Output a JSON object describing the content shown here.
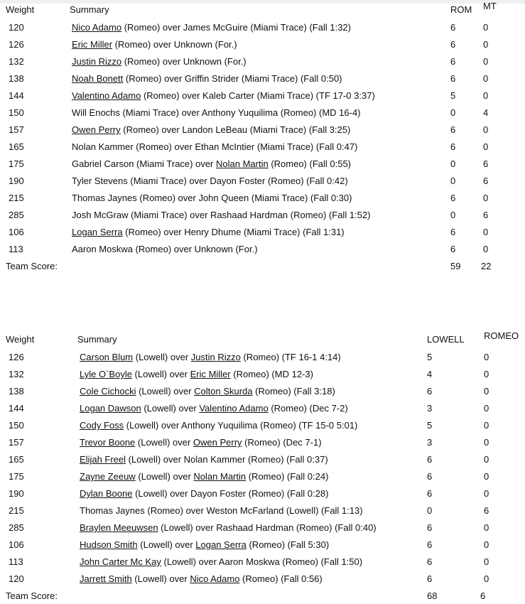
{
  "tables": [
    {
      "headers": {
        "weight": "Weight",
        "summary": "Summary",
        "team1": "ROM",
        "team2": "MT"
      },
      "rows": [
        {
          "weight": "120",
          "summary": [
            {
              "text": "Nico Adamo",
              "link": true
            },
            {
              "text": " (Romeo) over James McGuire (Miami Trace) (Fall 1:32)",
              "link": false
            }
          ],
          "team1": "6",
          "team2": "0"
        },
        {
          "weight": "126",
          "summary": [
            {
              "text": "Eric Miller",
              "link": true
            },
            {
              "text": " (Romeo) over Unknown (For.)",
              "link": false
            }
          ],
          "team1": "6",
          "team2": "0"
        },
        {
          "weight": "132",
          "summary": [
            {
              "text": "Justin Rizzo",
              "link": true
            },
            {
              "text": " (Romeo) over Unknown (For.)",
              "link": false
            }
          ],
          "team1": "6",
          "team2": "0"
        },
        {
          "weight": "138",
          "summary": [
            {
              "text": "Noah Bonett",
              "link": true
            },
            {
              "text": " (Romeo) over Griffin Strider (Miami Trace) (Fall 0:50)",
              "link": false
            }
          ],
          "team1": "6",
          "team2": "0"
        },
        {
          "weight": "144",
          "summary": [
            {
              "text": "Valentino Adamo",
              "link": true
            },
            {
              "text": " (Romeo) over Kaleb Carter (Miami Trace) (TF 17-0 3:37)",
              "link": false
            }
          ],
          "team1": "5",
          "team2": "0"
        },
        {
          "weight": "150",
          "summary": [
            {
              "text": "Will Enochs (Miami Trace) over Anthony Yuquilima (Romeo) (MD 16-4)",
              "link": false
            }
          ],
          "team1": "0",
          "team2": "4"
        },
        {
          "weight": "157",
          "summary": [
            {
              "text": "Owen Perry",
              "link": true
            },
            {
              "text": " (Romeo) over Landon LeBeau (Miami Trace) (Fall 3:25)",
              "link": false
            }
          ],
          "team1": "6",
          "team2": "0"
        },
        {
          "weight": "165",
          "summary": [
            {
              "text": "Nolan Kammer (Romeo) over Ethan McIntier (Miami Trace) (Fall 0:47)",
              "link": false
            }
          ],
          "team1": "6",
          "team2": "0"
        },
        {
          "weight": "175",
          "summary": [
            {
              "text": "Gabriel Carson (Miami Trace) over ",
              "link": false
            },
            {
              "text": "Nolan Martin",
              "link": true
            },
            {
              "text": " (Romeo) (Fall 0:55)",
              "link": false
            }
          ],
          "team1": "0",
          "team2": "6"
        },
        {
          "weight": "190",
          "summary": [
            {
              "text": "Tyler Stevens (Miami Trace) over Dayon Foster (Romeo) (Fall 0:42)",
              "link": false
            }
          ],
          "team1": "0",
          "team2": "6"
        },
        {
          "weight": "215",
          "summary": [
            {
              "text": "Thomas Jaynes (Romeo) over John Queen (Miami Trace) (Fall 0:30)",
              "link": false
            }
          ],
          "team1": "6",
          "team2": "0"
        },
        {
          "weight": "285",
          "summary": [
            {
              "text": "Josh McGraw (Miami Trace) over Rashaad Hardman (Romeo) (Fall 1:52)",
              "link": false
            }
          ],
          "team1": "0",
          "team2": "6"
        },
        {
          "weight": "106",
          "summary": [
            {
              "text": "Logan Serra",
              "link": true
            },
            {
              "text": " (Romeo) over Henry Dhume (Miami Trace) (Fall 1:31)",
              "link": false
            }
          ],
          "team1": "6",
          "team2": "0"
        },
        {
          "weight": "113",
          "summary": [
            {
              "text": "Aaron Moskwa (Romeo) over Unknown (For.)",
              "link": false
            }
          ],
          "team1": "6",
          "team2": "0"
        }
      ],
      "team_score": {
        "label": "Team Score:",
        "team1": "59",
        "team2": "22"
      }
    },
    {
      "headers": {
        "weight": "Weight",
        "summary": "Summary",
        "team1": "LOWELL",
        "team2": "ROMEO"
      },
      "rows": [
        {
          "weight": "126",
          "summary": [
            {
              "text": "Carson Blum",
              "link": true
            },
            {
              "text": " (Lowell) over ",
              "link": false
            },
            {
              "text": "Justin Rizzo",
              "link": true
            },
            {
              "text": " (Romeo) (TF 16-1 4:14)",
              "link": false
            }
          ],
          "team1": "5",
          "team2": "0"
        },
        {
          "weight": "132",
          "summary": [
            {
              "text": "Lyle O`Boyle",
              "link": true
            },
            {
              "text": " (Lowell) over ",
              "link": false
            },
            {
              "text": "Eric Miller",
              "link": true
            },
            {
              "text": " (Romeo) (MD 12-3)",
              "link": false
            }
          ],
          "team1": "4",
          "team2": "0"
        },
        {
          "weight": "138",
          "summary": [
            {
              "text": "Cole Cichocki",
              "link": true
            },
            {
              "text": " (Lowell) over ",
              "link": false
            },
            {
              "text": "Colton Skurda",
              "link": true
            },
            {
              "text": " (Romeo) (Fall 3:18)",
              "link": false
            }
          ],
          "team1": "6",
          "team2": "0"
        },
        {
          "weight": "144",
          "summary": [
            {
              "text": "Logan Dawson",
              "link": true
            },
            {
              "text": " (Lowell) over ",
              "link": false
            },
            {
              "text": "Valentino Adamo",
              "link": true
            },
            {
              "text": " (Romeo) (Dec 7-2)",
              "link": false
            }
          ],
          "team1": "3",
          "team2": "0"
        },
        {
          "weight": "150",
          "summary": [
            {
              "text": "Cody Foss",
              "link": true
            },
            {
              "text": " (Lowell) over Anthony Yuquilima (Romeo) (TF 15-0 5:01)",
              "link": false
            }
          ],
          "team1": "5",
          "team2": "0"
        },
        {
          "weight": "157",
          "summary": [
            {
              "text": "Trevor Boone",
              "link": true
            },
            {
              "text": " (Lowell) over ",
              "link": false
            },
            {
              "text": "Owen Perry",
              "link": true
            },
            {
              "text": " (Romeo) (Dec 7-1)",
              "link": false
            }
          ],
          "team1": "3",
          "team2": "0"
        },
        {
          "weight": "165",
          "summary": [
            {
              "text": "Elijah Freel",
              "link": true
            },
            {
              "text": " (Lowell) over Nolan Kammer (Romeo) (Fall 0:37)",
              "link": false
            }
          ],
          "team1": "6",
          "team2": "0"
        },
        {
          "weight": "175",
          "summary": [
            {
              "text": "Zayne Zeeuw",
              "link": true
            },
            {
              "text": " (Lowell) over ",
              "link": false
            },
            {
              "text": "Nolan Martin",
              "link": true
            },
            {
              "text": " (Romeo) (Fall 0:24)",
              "link": false
            }
          ],
          "team1": "6",
          "team2": "0"
        },
        {
          "weight": "190",
          "summary": [
            {
              "text": "Dylan Boone",
              "link": true
            },
            {
              "text": " (Lowell) over Dayon Foster (Romeo) (Fall 0:28)",
              "link": false
            }
          ],
          "team1": "6",
          "team2": "0"
        },
        {
          "weight": "215",
          "summary": [
            {
              "text": "Thomas Jaynes (Romeo) over Weston McFarland (Lowell) (Fall 1:13)",
              "link": false
            }
          ],
          "team1": "0",
          "team2": "6"
        },
        {
          "weight": "285",
          "summary": [
            {
              "text": "Braylen Meeuwsen",
              "link": true
            },
            {
              "text": " (Lowell) over Rashaad Hardman (Romeo) (Fall 0:40)",
              "link": false
            }
          ],
          "team1": "6",
          "team2": "0"
        },
        {
          "weight": "106",
          "summary": [
            {
              "text": "Hudson Smith",
              "link": true
            },
            {
              "text": " (Lowell) over ",
              "link": false
            },
            {
              "text": "Logan Serra",
              "link": true
            },
            {
              "text": " (Romeo) (Fall 5:30)",
              "link": false
            }
          ],
          "team1": "6",
          "team2": "0"
        },
        {
          "weight": "113",
          "summary": [
            {
              "text": "John Carter Mc Kay",
              "link": true
            },
            {
              "text": " (Lowell) over Aaron Moskwa (Romeo) (Fall 1:50)",
              "link": false
            }
          ],
          "team1": "6",
          "team2": "0"
        },
        {
          "weight": "120",
          "summary": [
            {
              "text": "Jarrett Smith",
              "link": true
            },
            {
              "text": " (Lowell) over ",
              "link": false
            },
            {
              "text": "Nico Adamo",
              "link": true
            },
            {
              "text": " (Romeo) (Fall 0:56)",
              "link": false
            }
          ],
          "team1": "6",
          "team2": "0"
        }
      ],
      "team_score": {
        "label": "Team Score:",
        "team1": "68",
        "team2": "6"
      }
    }
  ]
}
